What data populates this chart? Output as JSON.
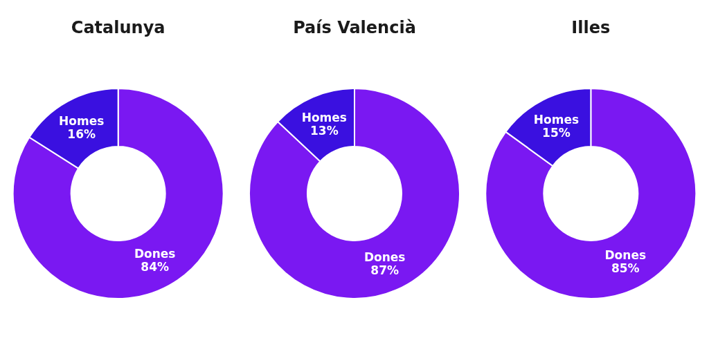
{
  "chart_data": [
    {
      "type": "donut",
      "title": "Catalunya",
      "categories": [
        "Dones",
        "Homes"
      ],
      "values": [
        84,
        16
      ],
      "colors": [
        "#7a18f2",
        "#3a10e0"
      ],
      "value_labels": [
        "84%",
        "16%"
      ]
    },
    {
      "type": "donut",
      "title": "País Valencià",
      "categories": [
        "Dones",
        "Homes"
      ],
      "values": [
        87,
        13
      ],
      "colors": [
        "#7a18f2",
        "#3a10e0"
      ],
      "value_labels": [
        "87%",
        "13%"
      ]
    },
    {
      "type": "donut",
      "title": "Illes",
      "categories": [
        "Dones",
        "Homes"
      ],
      "values": [
        85,
        15
      ],
      "colors": [
        "#7a18f2",
        "#3a10e0"
      ],
      "value_labels": [
        "85%",
        "15%"
      ]
    }
  ]
}
